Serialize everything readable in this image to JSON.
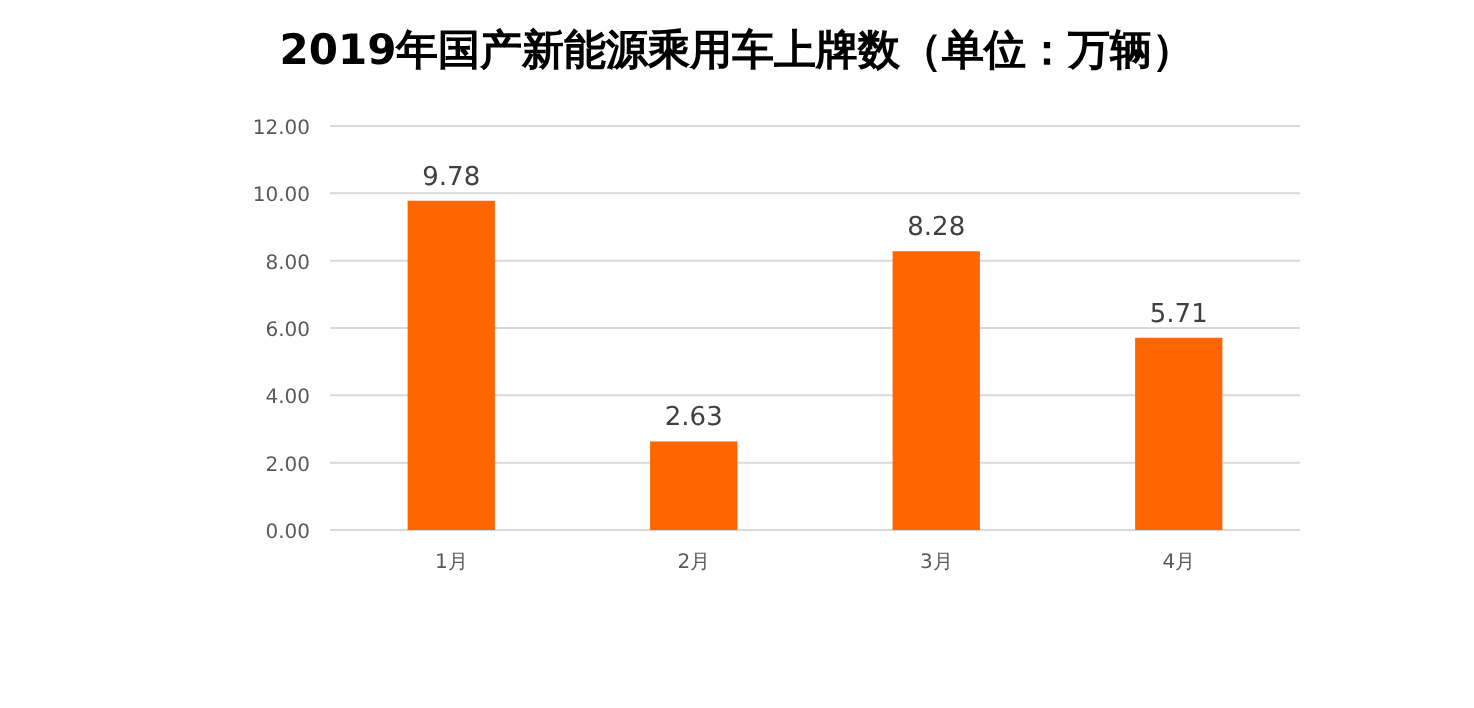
{
  "chart_data": {
    "type": "bar",
    "title": "2019年国产新能源乘用车上牌数（单位：万辆）",
    "categories": [
      "1月",
      "2月",
      "3月",
      "4月"
    ],
    "values": [
      9.78,
      2.63,
      8.28,
      5.71
    ],
    "color": "#ff6600",
    "ylim": [
      0,
      12
    ],
    "yticks": [
      {
        "value": 0,
        "label": "0.00"
      },
      {
        "value": 2,
        "label": "2.00"
      },
      {
        "value": 4,
        "label": "4.00"
      },
      {
        "value": 6,
        "label": "6.00"
      },
      {
        "value": 8,
        "label": "8.00"
      },
      {
        "value": 10,
        "label": "10.00"
      },
      {
        "value": 12,
        "label": "12.00"
      }
    ],
    "grid": "y",
    "data_labels": true
  }
}
